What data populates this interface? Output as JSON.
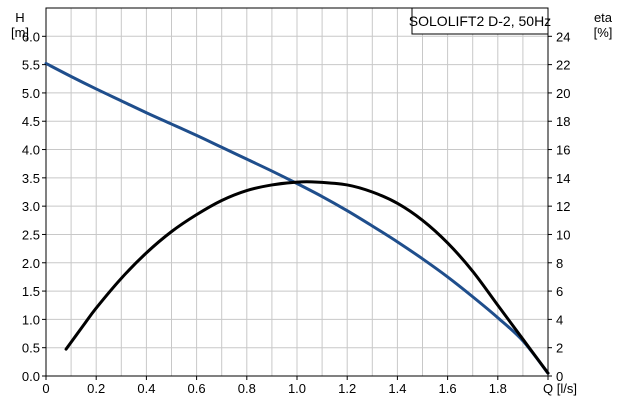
{
  "chart_data": {
    "type": "line",
    "title": "SOLOLIFT2 D-2, 50Hz",
    "xlabel": "Q [l/s]",
    "ylabel_left": [
      "H",
      "[m]"
    ],
    "ylabel_right": [
      "eta",
      "[%]"
    ],
    "xlim": [
      0,
      2.0
    ],
    "ylim_left": [
      0,
      6.5
    ],
    "ylim_right": [
      0,
      26
    ],
    "x_ticks": [
      "0",
      "0.2",
      "0.4",
      "0.6",
      "0.8",
      "1.0",
      "1.2",
      "1.4",
      "1.6",
      "1.8",
      "Q [l/s]"
    ],
    "y_left_ticks": [
      "0.0",
      "0.5",
      "1.0",
      "1.5",
      "2.0",
      "2.5",
      "3.0",
      "3.5",
      "4.0",
      "4.5",
      "5.0",
      "5.5",
      "6.0"
    ],
    "y_right_ticks": [
      "0",
      "2",
      "4",
      "6",
      "8",
      "10",
      "12",
      "14",
      "16",
      "18",
      "20",
      "22",
      "24"
    ],
    "grid": true,
    "legend_position": "top-right",
    "series": [
      {
        "axis": "left",
        "color": "#1f4e8c",
        "x": [
          0,
          0.1,
          0.2,
          0.3,
          0.4,
          0.5,
          0.6,
          0.7,
          0.8,
          0.9,
          1.0,
          1.1,
          1.2,
          1.3,
          1.4,
          1.5,
          1.6,
          1.7,
          1.8,
          1.9,
          2.0
        ],
        "y": [
          5.52,
          5.29,
          5.07,
          4.86,
          4.65,
          4.45,
          4.25,
          4.04,
          3.83,
          3.62,
          3.4,
          3.17,
          2.92,
          2.65,
          2.37,
          2.07,
          1.75,
          1.4,
          1.03,
          0.62,
          0.05
        ]
      },
      {
        "axis": "right",
        "color": "#000000",
        "x": [
          0.08,
          0.15,
          0.2,
          0.3,
          0.4,
          0.5,
          0.6,
          0.7,
          0.8,
          0.9,
          1.0,
          1.08,
          1.2,
          1.3,
          1.4,
          1.5,
          1.6,
          1.7,
          1.8,
          1.9,
          2.0
        ],
        "y": [
          1.9,
          3.6,
          4.8,
          6.9,
          8.7,
          10.2,
          11.4,
          12.4,
          13.1,
          13.5,
          13.7,
          13.7,
          13.5,
          13.0,
          12.2,
          11.0,
          9.4,
          7.4,
          5.0,
          2.6,
          0.2
        ]
      }
    ]
  }
}
